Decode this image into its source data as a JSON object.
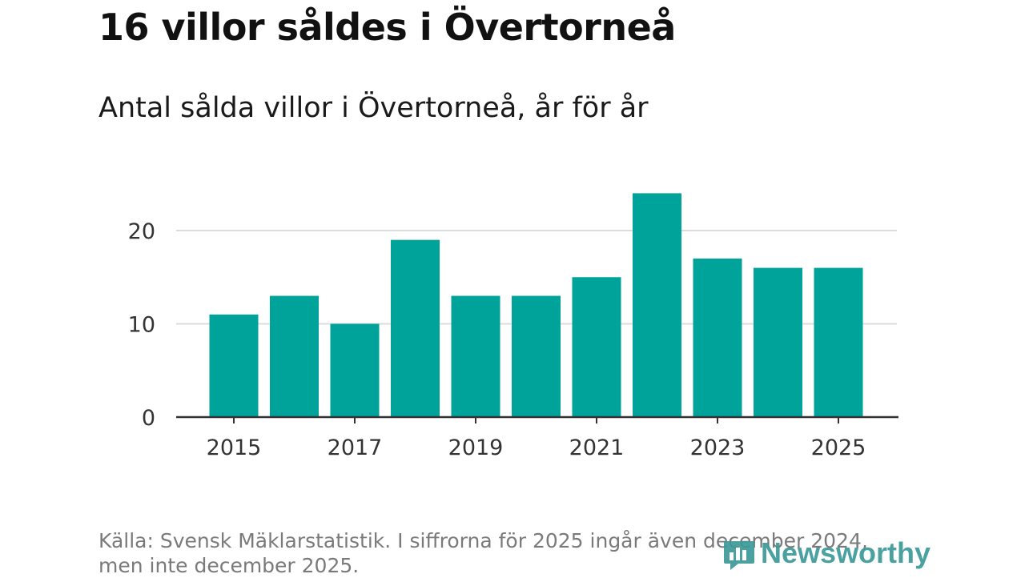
{
  "header": {
    "title": "16 villor såldes i Övertorneå",
    "subtitle": "Antal sålda villor i Övertorneå, år för år"
  },
  "chart_data": {
    "type": "bar",
    "title": "16 villor såldes i Övertorneå",
    "subtitle": "Antal sålda villor i Övertorneå, år för år",
    "xlabel": "",
    "ylabel": "",
    "categories": [
      2015,
      2016,
      2017,
      2018,
      2019,
      2020,
      2021,
      2022,
      2023,
      2024,
      2025
    ],
    "values": [
      11,
      13,
      10,
      19,
      13,
      13,
      15,
      24,
      17,
      16,
      16
    ],
    "x_tick_labels": [
      "2015",
      "2017",
      "2019",
      "2021",
      "2023",
      "2025"
    ],
    "y_ticks": [
      0,
      10,
      20
    ],
    "y_tick_labels": [
      "0",
      "10",
      "20"
    ],
    "ylim": [
      0,
      24
    ],
    "grid": true,
    "bar_color": "#00a39a"
  },
  "footer": {
    "source": "Källa: Svensk Mäklarstatistik. I siffrorna för 2025 ingår även december 2024, men inte december 2025."
  },
  "brand": {
    "name": "Newsworthy",
    "color": "#3c9a98",
    "icon": "newsworthy-logo-icon"
  }
}
